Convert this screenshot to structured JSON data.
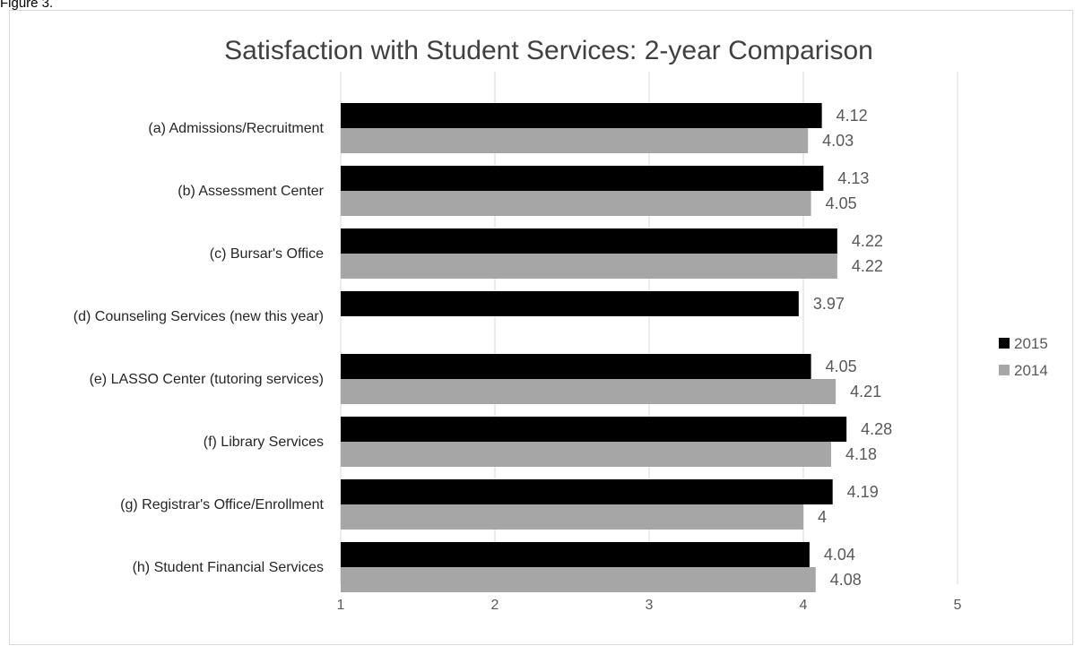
{
  "figure_caption": "Figure 3.",
  "chart_data": {
    "type": "bar",
    "orientation": "horizontal",
    "title": "Satisfaction with Student Services: 2-year Comparison",
    "xlabel": "",
    "ylabel": "",
    "xlim": [
      1,
      5
    ],
    "ticks": [
      1,
      2,
      3,
      4,
      5
    ],
    "grid": true,
    "legend_position": "right",
    "categories": [
      "(a) Admissions/Recruitment",
      "(b) Assessment Center",
      "(c) Bursar's Office",
      "(d) Counseling Services (new this year)",
      "(e) LASSO Center (tutoring services)",
      "(f) Library Services",
      "(g) Registrar's Office/Enrollment",
      "(h) Student Financial Services"
    ],
    "series": [
      {
        "name": "2015",
        "color": "#000000",
        "values": [
          4.12,
          4.13,
          4.22,
          3.97,
          4.05,
          4.28,
          4.19,
          4.04
        ]
      },
      {
        "name": "2014",
        "color": "#a6a6a6",
        "values": [
          4.03,
          4.05,
          4.22,
          null,
          4.21,
          4.18,
          4,
          4.08
        ]
      }
    ]
  }
}
